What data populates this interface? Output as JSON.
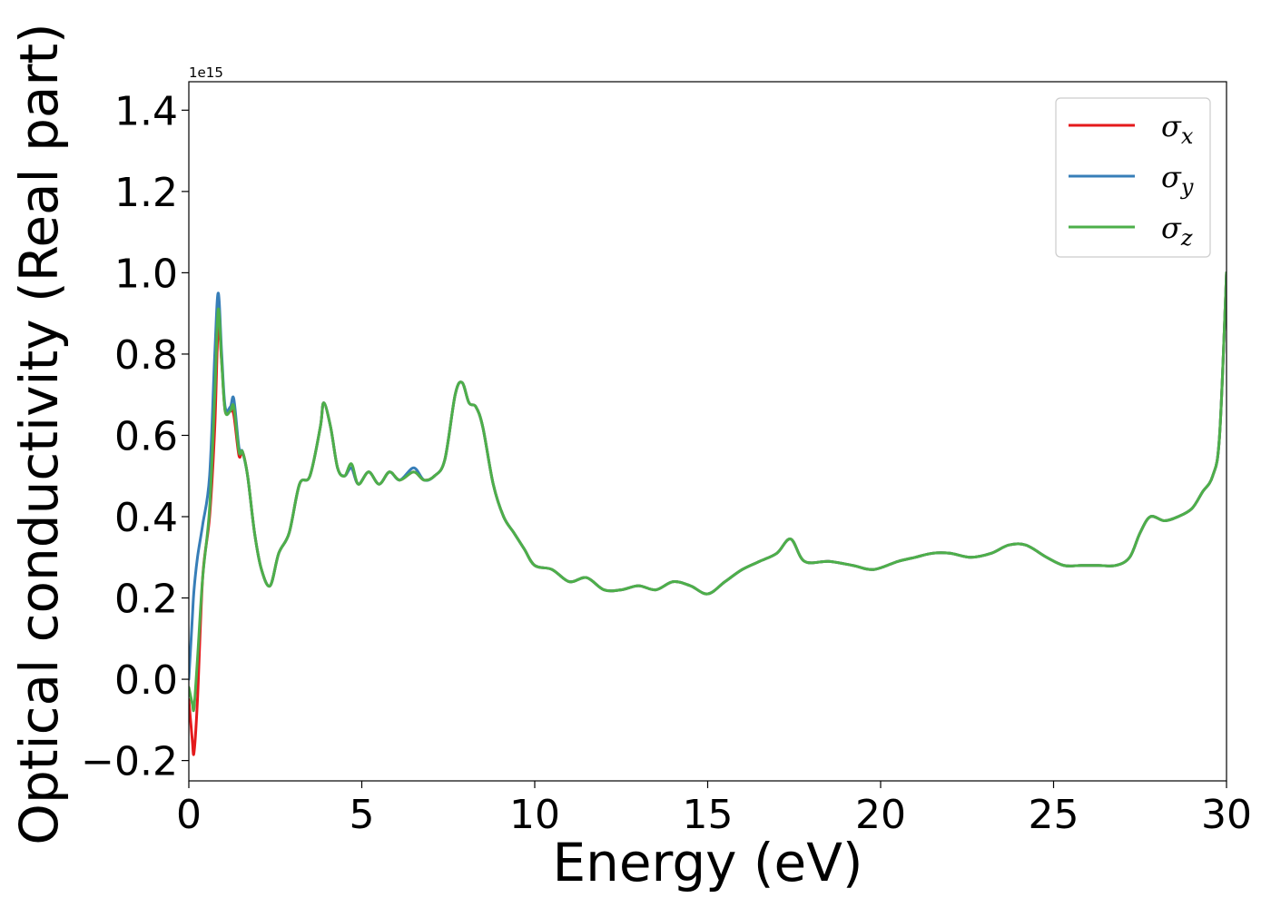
{
  "chart_data": {
    "type": "line",
    "xlabel": "Energy (eV)",
    "ylabel": "Optical conductivity (Real part)",
    "y_offset_label": "1e15",
    "xlim": [
      0,
      30
    ],
    "ylim": [
      -0.25,
      1.47
    ],
    "xticks": [
      0,
      5,
      10,
      15,
      20,
      25,
      30
    ],
    "xtick_labels": [
      "0",
      "5",
      "10",
      "15",
      "20",
      "25",
      "30"
    ],
    "yticks": [
      -0.2,
      0.0,
      0.2,
      0.4,
      0.6,
      0.8,
      1.0,
      1.2,
      1.4
    ],
    "ytick_labels": [
      "−0.2",
      "0.0",
      "0.2",
      "0.4",
      "0.6",
      "0.8",
      "1.0",
      "1.2",
      "1.4"
    ],
    "grid": false,
    "legend_position": "top-right",
    "series": [
      {
        "name": "σx",
        "legend_base": "σ",
        "legend_sub": "x",
        "color": "#e41a1c",
        "x": [
          0,
          0.1,
          0.15,
          0.25,
          0.4,
          0.6,
          0.75,
          0.85,
          0.95,
          1.05,
          1.2,
          1.3,
          1.45,
          1.55,
          1.7,
          1.9,
          2.1,
          2.35,
          2.6,
          2.9,
          3.2,
          3.5,
          3.8,
          3.9,
          4.1,
          4.3,
          4.5,
          4.7,
          4.9,
          5.2,
          5.5,
          5.8,
          6.1,
          6.5,
          6.8,
          7.1,
          7.4,
          7.7,
          7.9,
          8.1,
          8.3,
          8.5,
          8.8,
          9.1,
          9.4,
          9.7,
          10.0,
          10.5,
          11.0,
          11.5,
          12.0,
          12.5,
          13.0,
          13.5,
          14.0,
          14.5,
          15.0,
          15.5,
          16.0,
          16.5,
          17.0,
          17.4,
          17.8,
          18.5,
          19.2,
          19.8,
          20.5,
          21.0,
          21.5,
          22.0,
          22.6,
          23.2,
          23.7,
          24.2,
          24.8,
          25.3,
          25.8,
          26.3,
          26.8,
          27.2,
          27.5,
          27.8,
          28.2,
          28.6,
          29.0,
          29.3,
          29.6,
          29.8,
          30.0
        ],
        "y": [
          -0.05,
          -0.15,
          -0.18,
          -0.05,
          0.25,
          0.4,
          0.62,
          0.87,
          0.78,
          0.66,
          0.66,
          0.65,
          0.55,
          0.56,
          0.5,
          0.36,
          0.27,
          0.23,
          0.31,
          0.36,
          0.48,
          0.5,
          0.62,
          0.68,
          0.62,
          0.52,
          0.5,
          0.52,
          0.48,
          0.51,
          0.48,
          0.51,
          0.49,
          0.51,
          0.49,
          0.5,
          0.54,
          0.7,
          0.73,
          0.68,
          0.67,
          0.62,
          0.48,
          0.4,
          0.36,
          0.32,
          0.28,
          0.27,
          0.24,
          0.25,
          0.22,
          0.22,
          0.23,
          0.22,
          0.24,
          0.23,
          0.21,
          0.24,
          0.27,
          0.29,
          0.31,
          0.345,
          0.29,
          0.29,
          0.28,
          0.27,
          0.29,
          0.3,
          0.31,
          0.31,
          0.3,
          0.31,
          0.33,
          0.33,
          0.3,
          0.28,
          0.28,
          0.28,
          0.28,
          0.3,
          0.36,
          0.4,
          0.39,
          0.4,
          0.42,
          0.46,
          0.5,
          0.6,
          1.0
        ]
      },
      {
        "name": "σy",
        "legend_base": "σ",
        "legend_sub": "y",
        "color": "#377eb8",
        "x": [
          0,
          0.1,
          0.15,
          0.25,
          0.4,
          0.6,
          0.75,
          0.85,
          0.95,
          1.05,
          1.2,
          1.3,
          1.45,
          1.55,
          1.7,
          1.9,
          2.1,
          2.35,
          2.6,
          2.9,
          3.2,
          3.5,
          3.8,
          3.9,
          4.1,
          4.3,
          4.5,
          4.7,
          4.9,
          5.2,
          5.5,
          5.8,
          6.1,
          6.5,
          6.8,
          7.1,
          7.4,
          7.7,
          7.9,
          8.1,
          8.3,
          8.5,
          8.8,
          9.1,
          9.4,
          9.7,
          10.0,
          10.5,
          11.0,
          11.5,
          12.0,
          12.5,
          13.0,
          13.5,
          14.0,
          14.5,
          15.0,
          15.5,
          16.0,
          16.5,
          17.0,
          17.4,
          17.8,
          18.5,
          19.2,
          19.8,
          20.5,
          21.0,
          21.5,
          22.0,
          22.6,
          23.2,
          23.7,
          24.2,
          24.8,
          25.3,
          25.8,
          26.3,
          26.8,
          27.2,
          27.5,
          27.8,
          28.2,
          28.6,
          29.0,
          29.3,
          29.6,
          29.8,
          30.0
        ],
        "y": [
          0.0,
          0.15,
          0.22,
          0.3,
          0.38,
          0.5,
          0.8,
          0.95,
          0.8,
          0.67,
          0.67,
          0.69,
          0.57,
          0.56,
          0.5,
          0.36,
          0.27,
          0.23,
          0.31,
          0.36,
          0.48,
          0.5,
          0.62,
          0.68,
          0.62,
          0.52,
          0.5,
          0.52,
          0.48,
          0.51,
          0.48,
          0.51,
          0.49,
          0.52,
          0.49,
          0.5,
          0.54,
          0.7,
          0.73,
          0.68,
          0.67,
          0.62,
          0.48,
          0.4,
          0.36,
          0.32,
          0.28,
          0.27,
          0.24,
          0.25,
          0.22,
          0.22,
          0.23,
          0.22,
          0.24,
          0.23,
          0.21,
          0.24,
          0.27,
          0.29,
          0.31,
          0.345,
          0.29,
          0.29,
          0.28,
          0.27,
          0.29,
          0.3,
          0.31,
          0.31,
          0.3,
          0.31,
          0.33,
          0.33,
          0.3,
          0.28,
          0.28,
          0.28,
          0.28,
          0.3,
          0.36,
          0.4,
          0.39,
          0.4,
          0.42,
          0.46,
          0.5,
          0.6,
          1.0
        ]
      },
      {
        "name": "σz",
        "legend_base": "σ",
        "legend_sub": "z",
        "color": "#4daf4a",
        "x": [
          0,
          0.1,
          0.15,
          0.25,
          0.4,
          0.6,
          0.75,
          0.85,
          0.95,
          1.05,
          1.2,
          1.3,
          1.45,
          1.55,
          1.7,
          1.9,
          2.1,
          2.35,
          2.6,
          2.9,
          3.2,
          3.5,
          3.8,
          3.9,
          4.1,
          4.3,
          4.5,
          4.7,
          4.9,
          5.2,
          5.5,
          5.8,
          6.1,
          6.5,
          6.8,
          7.1,
          7.4,
          7.7,
          7.9,
          8.1,
          8.3,
          8.5,
          8.8,
          9.1,
          9.4,
          9.7,
          10.0,
          10.5,
          11.0,
          11.5,
          12.0,
          12.5,
          13.0,
          13.5,
          14.0,
          14.5,
          15.0,
          15.5,
          16.0,
          16.5,
          17.0,
          17.4,
          17.8,
          18.5,
          19.2,
          19.8,
          20.5,
          21.0,
          21.5,
          22.0,
          22.6,
          23.2,
          23.7,
          24.2,
          24.8,
          25.3,
          25.8,
          26.3,
          26.8,
          27.2,
          27.5,
          27.8,
          28.2,
          28.6,
          29.0,
          29.3,
          29.6,
          29.8,
          30.0
        ],
        "y": [
          -0.02,
          -0.06,
          -0.07,
          0.05,
          0.25,
          0.42,
          0.7,
          0.91,
          0.78,
          0.66,
          0.66,
          0.67,
          0.56,
          0.56,
          0.5,
          0.36,
          0.27,
          0.23,
          0.31,
          0.36,
          0.48,
          0.5,
          0.62,
          0.68,
          0.62,
          0.52,
          0.5,
          0.53,
          0.48,
          0.51,
          0.48,
          0.51,
          0.49,
          0.51,
          0.49,
          0.5,
          0.54,
          0.7,
          0.73,
          0.68,
          0.67,
          0.62,
          0.48,
          0.4,
          0.36,
          0.32,
          0.28,
          0.27,
          0.24,
          0.25,
          0.22,
          0.22,
          0.23,
          0.22,
          0.24,
          0.23,
          0.21,
          0.24,
          0.27,
          0.29,
          0.31,
          0.345,
          0.29,
          0.29,
          0.28,
          0.27,
          0.29,
          0.3,
          0.31,
          0.31,
          0.3,
          0.31,
          0.33,
          0.33,
          0.3,
          0.28,
          0.28,
          0.28,
          0.28,
          0.3,
          0.36,
          0.4,
          0.39,
          0.4,
          0.42,
          0.46,
          0.5,
          0.6,
          1.0
        ]
      }
    ]
  }
}
